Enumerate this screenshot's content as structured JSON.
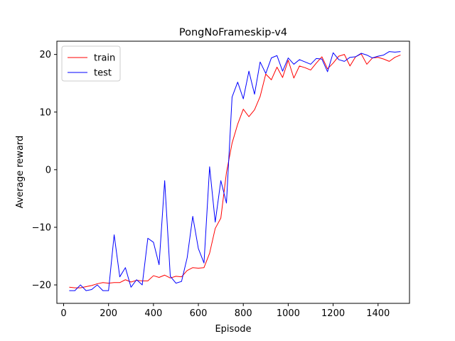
{
  "chart_data": {
    "type": "line",
    "title": "PongNoFrameskip-v4",
    "xlabel": "Episode",
    "ylabel": "Average reward",
    "xlim": [
      -30,
      1540
    ],
    "ylim": [
      -23.2,
      22.3
    ],
    "xticks": [
      0,
      200,
      400,
      600,
      800,
      1000,
      1200,
      1400
    ],
    "yticks": [
      -20,
      -10,
      0,
      10,
      20
    ],
    "grid": false,
    "legend_position": "top-left",
    "series": [
      {
        "name": "train",
        "color": "#ff0000",
        "x": [
          25,
          50,
          75,
          100,
          125,
          150,
          175,
          200,
          225,
          250,
          275,
          300,
          325,
          350,
          375,
          400,
          425,
          450,
          475,
          500,
          525,
          550,
          575,
          600,
          625,
          650,
          675,
          700,
          725,
          750,
          775,
          800,
          825,
          850,
          875,
          900,
          925,
          950,
          975,
          1000,
          1025,
          1050,
          1075,
          1100,
          1125,
          1150,
          1175,
          1200,
          1225,
          1250,
          1275,
          1300,
          1325,
          1350,
          1375,
          1400,
          1425,
          1450,
          1475,
          1500
        ],
        "y": [
          -20.4,
          -20.5,
          -20.5,
          -20.3,
          -20.1,
          -19.8,
          -19.6,
          -19.7,
          -19.6,
          -19.6,
          -19.1,
          -19.5,
          -19.2,
          -19.3,
          -19.3,
          -18.4,
          -18.7,
          -18.3,
          -18.8,
          -18.5,
          -18.6,
          -17.5,
          -17.0,
          -17.1,
          -17.0,
          -14.5,
          -10.2,
          -8.4,
          -0.5,
          4.6,
          7.9,
          10.5,
          9.2,
          10.4,
          12.7,
          16.6,
          15.6,
          17.8,
          16.0,
          19.0,
          15.9,
          18.0,
          17.7,
          17.3,
          18.5,
          19.6,
          17.5,
          18.5,
          19.7,
          20.0,
          18.0,
          19.6,
          20.1,
          18.3,
          19.4,
          19.5,
          19.2,
          18.8,
          19.5,
          19.9
        ]
      },
      {
        "name": "test",
        "color": "#0000ff",
        "x": [
          25,
          50,
          75,
          100,
          125,
          150,
          175,
          200,
          225,
          250,
          275,
          300,
          325,
          350,
          375,
          400,
          425,
          450,
          475,
          500,
          525,
          550,
          575,
          600,
          625,
          650,
          675,
          700,
          725,
          750,
          775,
          800,
          825,
          850,
          875,
          900,
          925,
          950,
          975,
          1000,
          1025,
          1050,
          1075,
          1100,
          1125,
          1150,
          1175,
          1200,
          1225,
          1250,
          1275,
          1300,
          1325,
          1350,
          1375,
          1400,
          1425,
          1450,
          1475,
          1500
        ],
        "y": [
          -21.0,
          -21.0,
          -20.0,
          -21.0,
          -20.8,
          -20.0,
          -21.0,
          -21.0,
          -11.3,
          -18.6,
          -17.0,
          -20.4,
          -19.1,
          -20.0,
          -11.9,
          -12.6,
          -16.5,
          -1.9,
          -18.5,
          -19.7,
          -19.4,
          -15.3,
          -8.1,
          -13.7,
          -16.2,
          0.5,
          -9.1,
          -1.9,
          -5.8,
          12.6,
          15.2,
          12.3,
          17.1,
          13.1,
          18.7,
          16.7,
          19.4,
          19.8,
          17.1,
          19.4,
          18.3,
          19.1,
          18.7,
          18.3,
          19.3,
          19.2,
          17.0,
          20.3,
          19.1,
          18.8,
          19.5,
          19.6,
          20.2,
          19.9,
          19.4,
          19.7,
          19.9,
          20.5,
          20.4,
          20.5
        ]
      }
    ]
  }
}
